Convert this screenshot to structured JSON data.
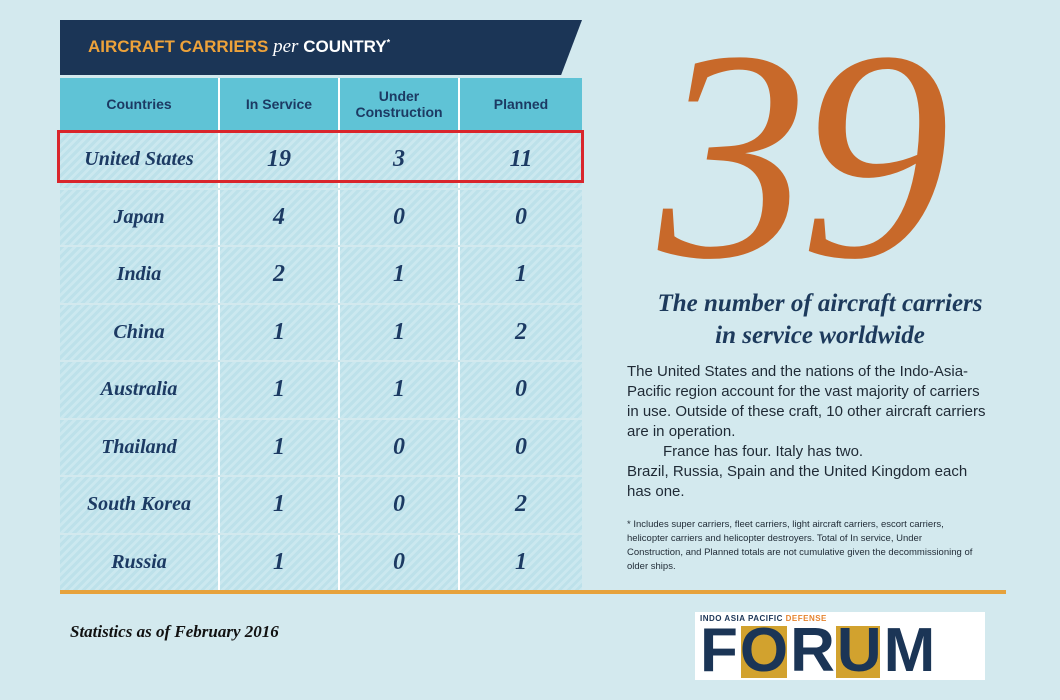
{
  "header": {
    "title_main": "AIRCRAFT CARRIERS",
    "title_per": "per",
    "title_country": "COUNTRY",
    "title_mark": "*"
  },
  "table": {
    "columns": [
      "Countries",
      "In Service",
      "Under Construction",
      "Planned"
    ],
    "rows": [
      [
        "United States",
        19,
        3,
        11
      ],
      [
        "Japan",
        4,
        0,
        0
      ],
      [
        "India",
        2,
        1,
        1
      ],
      [
        "China",
        1,
        1,
        2
      ],
      [
        "Australia",
        1,
        1,
        0
      ],
      [
        "Thailand",
        1,
        0,
        0
      ],
      [
        "South Korea",
        1,
        0,
        2
      ],
      [
        "Russia",
        1,
        0,
        1
      ]
    ]
  },
  "feature": {
    "number": 39,
    "caption": "The number of aircraft carriers in service worldwide",
    "paragraphs": [
      "The United States and the nations of the Indo-Asia-Pacific region account for the vast majority of carriers in use. Outside of these craft, 10 other aircraft carriers are in operation.",
      "France has four. Italy has two.",
      "Brazil, Russia, Spain and the United Kingdom each has one."
    ],
    "footnote": "* Includes super carriers, fleet carriers, light aircraft carriers, escort carriers, helicopter carriers and helicopter destroyers. Total of In service, Under Construction, and Planned totals are not cumulative given the decommissioning of older ships."
  },
  "footer": {
    "note": "Statistics as of February 2016",
    "logo_top": "INDO ASIA PACIFIC",
    "logo_top_accent": "DEFENSE",
    "logo": "FORUM"
  }
}
